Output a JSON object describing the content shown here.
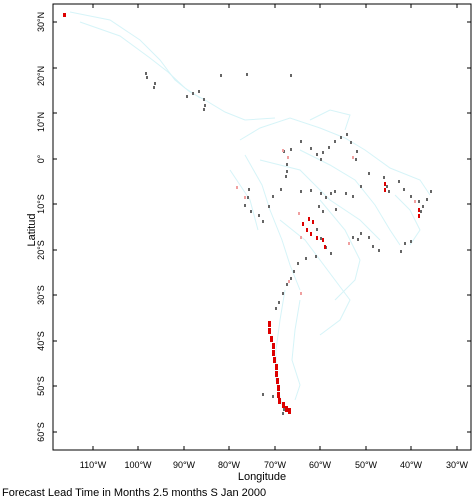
{
  "map": {
    "y_axis_title": "Latitud",
    "x_axis_title": "Longitude",
    "lat_ticks": [
      "30°N",
      "20°N",
      "10°N",
      "0°",
      "10°S",
      "20°S",
      "30°S",
      "40°S",
      "50°S",
      "60°S"
    ],
    "lon_ticks": [
      "110°W",
      "100°W",
      "90°W",
      "80°W",
      "70°W",
      "60°W",
      "50°W",
      "40°W",
      "30°W"
    ],
    "caption": "Forecast Lead Time in Months 2.5 months S Jan 2000",
    "colors": {
      "faint": "#d6f4f8",
      "gray": "#666666",
      "red": "#dd0000",
      "pink": "#f0a0a0"
    }
  }
}
